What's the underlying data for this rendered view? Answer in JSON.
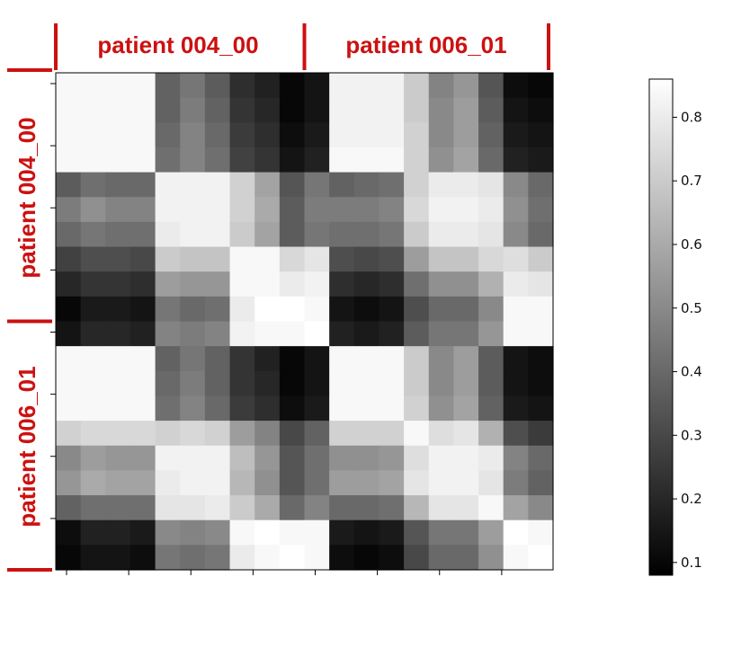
{
  "chart_data": {
    "type": "heatmap",
    "title": "",
    "xlabel": "",
    "ylabel": "",
    "groups": [
      "patient 004_00",
      "patient 006_01"
    ],
    "group_color": "#cc1111",
    "rows": 20,
    "cols": 20,
    "colormap": "gray",
    "colorbar": {
      "vmin": 0.08,
      "vmax": 0.86,
      "ticks": [
        0.1,
        0.2,
        0.3,
        0.4,
        0.5,
        0.6,
        0.7,
        0.8
      ],
      "tick_labels": [
        "0.1",
        "0.2",
        "0.3",
        "0.4",
        "0.5",
        "0.6",
        "0.7",
        "0.8"
      ]
    },
    "values": [
      [
        0.84,
        0.84,
        0.84,
        0.84,
        0.38,
        0.44,
        0.36,
        0.22,
        0.18,
        0.1,
        0.14,
        0.82,
        0.82,
        0.82,
        0.7,
        0.48,
        0.54,
        0.34,
        0.12,
        0.1
      ],
      [
        0.84,
        0.84,
        0.84,
        0.84,
        0.38,
        0.46,
        0.38,
        0.24,
        0.2,
        0.1,
        0.14,
        0.82,
        0.82,
        0.82,
        0.7,
        0.5,
        0.56,
        0.36,
        0.14,
        0.12
      ],
      [
        0.84,
        0.84,
        0.84,
        0.84,
        0.4,
        0.48,
        0.4,
        0.26,
        0.22,
        0.12,
        0.16,
        0.82,
        0.82,
        0.82,
        0.72,
        0.5,
        0.56,
        0.38,
        0.16,
        0.14
      ],
      [
        0.84,
        0.84,
        0.84,
        0.84,
        0.42,
        0.48,
        0.42,
        0.28,
        0.24,
        0.14,
        0.18,
        0.84,
        0.84,
        0.84,
        0.72,
        0.52,
        0.58,
        0.4,
        0.18,
        0.16
      ],
      [
        0.36,
        0.42,
        0.4,
        0.4,
        0.82,
        0.82,
        0.82,
        0.72,
        0.58,
        0.34,
        0.44,
        0.38,
        0.4,
        0.42,
        0.72,
        0.8,
        0.8,
        0.78,
        0.5,
        0.4
      ],
      [
        0.46,
        0.52,
        0.48,
        0.48,
        0.82,
        0.82,
        0.82,
        0.72,
        0.6,
        0.36,
        0.46,
        0.46,
        0.46,
        0.48,
        0.74,
        0.82,
        0.82,
        0.8,
        0.52,
        0.42
      ],
      [
        0.4,
        0.44,
        0.42,
        0.42,
        0.8,
        0.82,
        0.82,
        0.7,
        0.58,
        0.36,
        0.44,
        0.42,
        0.42,
        0.44,
        0.7,
        0.8,
        0.8,
        0.78,
        0.5,
        0.4
      ],
      [
        0.28,
        0.32,
        0.32,
        0.3,
        0.7,
        0.68,
        0.68,
        0.84,
        0.84,
        0.74,
        0.78,
        0.32,
        0.3,
        0.32,
        0.56,
        0.68,
        0.68,
        0.74,
        0.76,
        0.7
      ],
      [
        0.2,
        0.24,
        0.24,
        0.22,
        0.56,
        0.54,
        0.54,
        0.84,
        0.84,
        0.8,
        0.82,
        0.22,
        0.2,
        0.22,
        0.42,
        0.52,
        0.52,
        0.62,
        0.8,
        0.78
      ],
      [
        0.1,
        0.16,
        0.16,
        0.14,
        0.44,
        0.4,
        0.42,
        0.8,
        0.86,
        0.86,
        0.84,
        0.14,
        0.12,
        0.14,
        0.32,
        0.4,
        0.4,
        0.5,
        0.84,
        0.84
      ],
      [
        0.14,
        0.2,
        0.2,
        0.18,
        0.48,
        0.46,
        0.48,
        0.82,
        0.84,
        0.84,
        0.86,
        0.18,
        0.16,
        0.18,
        0.36,
        0.44,
        0.44,
        0.54,
        0.84,
        0.84
      ],
      [
        0.84,
        0.84,
        0.84,
        0.84,
        0.38,
        0.44,
        0.38,
        0.24,
        0.18,
        0.1,
        0.14,
        0.84,
        0.84,
        0.84,
        0.7,
        0.5,
        0.56,
        0.36,
        0.14,
        0.12
      ],
      [
        0.84,
        0.84,
        0.84,
        0.84,
        0.4,
        0.46,
        0.38,
        0.24,
        0.2,
        0.1,
        0.14,
        0.84,
        0.84,
        0.84,
        0.7,
        0.5,
        0.56,
        0.36,
        0.14,
        0.12
      ],
      [
        0.84,
        0.84,
        0.84,
        0.84,
        0.42,
        0.48,
        0.4,
        0.26,
        0.22,
        0.12,
        0.16,
        0.84,
        0.84,
        0.84,
        0.72,
        0.52,
        0.58,
        0.38,
        0.16,
        0.14
      ],
      [
        0.72,
        0.74,
        0.74,
        0.74,
        0.72,
        0.74,
        0.72,
        0.56,
        0.48,
        0.3,
        0.38,
        0.72,
        0.72,
        0.72,
        0.84,
        0.76,
        0.78,
        0.62,
        0.32,
        0.26
      ],
      [
        0.5,
        0.56,
        0.54,
        0.54,
        0.82,
        0.82,
        0.82,
        0.66,
        0.54,
        0.34,
        0.42,
        0.52,
        0.52,
        0.54,
        0.76,
        0.82,
        0.82,
        0.8,
        0.48,
        0.4
      ],
      [
        0.54,
        0.6,
        0.58,
        0.58,
        0.8,
        0.82,
        0.82,
        0.64,
        0.52,
        0.34,
        0.42,
        0.56,
        0.56,
        0.58,
        0.78,
        0.82,
        0.82,
        0.78,
        0.46,
        0.38
      ],
      [
        0.38,
        0.42,
        0.42,
        0.42,
        0.78,
        0.78,
        0.8,
        0.7,
        0.6,
        0.4,
        0.48,
        0.4,
        0.4,
        0.42,
        0.64,
        0.78,
        0.78,
        0.84,
        0.58,
        0.5
      ],
      [
        0.12,
        0.18,
        0.18,
        0.16,
        0.5,
        0.48,
        0.5,
        0.84,
        0.86,
        0.84,
        0.84,
        0.16,
        0.14,
        0.16,
        0.34,
        0.44,
        0.44,
        0.56,
        0.86,
        0.84
      ],
      [
        0.1,
        0.14,
        0.14,
        0.12,
        0.44,
        0.42,
        0.44,
        0.8,
        0.84,
        0.86,
        0.84,
        0.12,
        0.1,
        0.12,
        0.3,
        0.4,
        0.4,
        0.52,
        0.84,
        0.86
      ]
    ]
  }
}
